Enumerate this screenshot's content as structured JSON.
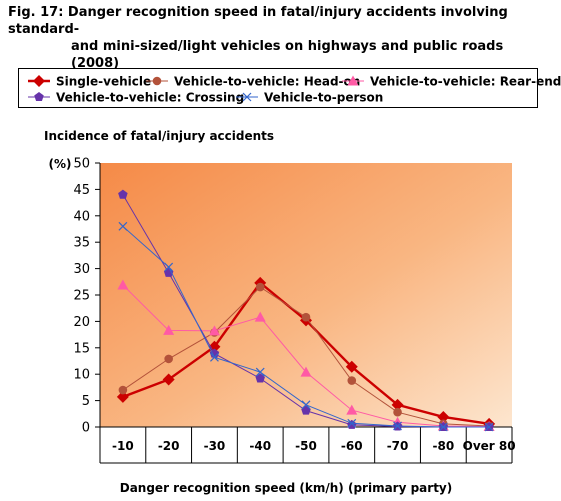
{
  "title": {
    "line1": "Fig. 17: Danger recognition speed in fatal/injury accidents involving standard-",
    "line2": "and mini-sized/light vehicles on highways and public roads (2008)"
  },
  "colors": {
    "single_vehicle": "#cc0000",
    "head_on": "#b3523a",
    "rear_end": "#ff5aa5",
    "crossing": "#6633aa",
    "person": "#3366cc"
  },
  "chart_data": {
    "type": "line",
    "title": "Fig. 17: Danger recognition speed in fatal/injury accidents involving standard- and mini-sized/light vehicles on highways and public roads (2008)",
    "ytitle": "Incidence of fatal/injury accidents",
    "yunit": "(%)",
    "xlabel": "Danger recognition speed (km/h) (primary party)",
    "categories": [
      "-10",
      "-20",
      "-30",
      "-40",
      "-50",
      "-60",
      "-70",
      "-80",
      "Over 80"
    ],
    "ylim": [
      0,
      50
    ],
    "yticks": [
      0,
      5,
      10,
      15,
      20,
      25,
      30,
      35,
      40,
      45,
      50
    ],
    "grid": false,
    "legend_position": "top",
    "series": [
      {
        "name": "Single-vehicle",
        "marker": "diamond",
        "color_key": "single_vehicle",
        "values": [
          5.7,
          9.0,
          15.2,
          27.3,
          20.2,
          11.4,
          4.2,
          1.9,
          0.6
        ]
      },
      {
        "name": "Vehicle-to-vehicle: Head-on",
        "marker": "circle",
        "color_key": "head_on",
        "values": [
          7.0,
          12.9,
          17.9,
          26.5,
          20.8,
          8.8,
          2.8,
          0.6,
          0.2
        ]
      },
      {
        "name": "Vehicle-to-vehicle: Rear-end",
        "marker": "triangle",
        "color_key": "rear_end",
        "values": [
          26.9,
          18.3,
          18.2,
          20.8,
          10.4,
          3.2,
          0.9,
          0.2,
          0.1
        ]
      },
      {
        "name": "Vehicle-to-vehicle: Crossing",
        "marker": "pentagon",
        "color_key": "crossing",
        "values": [
          44.0,
          29.2,
          13.9,
          9.2,
          3.1,
          0.4,
          0.1,
          0.0,
          0.0
        ]
      },
      {
        "name": "Vehicle-to-person",
        "marker": "x",
        "color_key": "person",
        "values": [
          38.0,
          30.3,
          13.2,
          10.4,
          4.2,
          0.7,
          0.2,
          0.0,
          0.0
        ]
      }
    ]
  }
}
